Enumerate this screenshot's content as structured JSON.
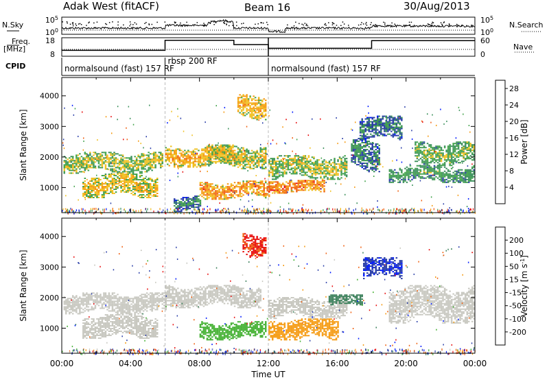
{
  "header": {
    "station": "Adak West (fitACF)",
    "beam": "Beam 16",
    "date": "30/Aug/2013"
  },
  "side_labels": {
    "nsky": "N.Sky",
    "freq_line1": "Freq.",
    "freq_line2": "[MHz]",
    "cpid": "CPID",
    "nsearch": "N.Search",
    "nave": "Nave"
  },
  "chart_data": [
    {
      "type": "line",
      "panel": "noise",
      "series": [
        {
          "name": "N.Sky"
        },
        {
          "name": "N.Search"
        }
      ],
      "y_ticks": [
        "10^0",
        "10^5"
      ],
      "y2_ticks": [
        "10^0",
        "10^5"
      ]
    },
    {
      "type": "line",
      "panel": "frequency",
      "series": [
        {
          "name": "Freq.",
          "unit": "MHz"
        },
        {
          "name": "Nave"
        }
      ],
      "y_ticks": [
        "8",
        "18"
      ],
      "y2_ticks": [
        "0",
        "60"
      ],
      "freq_steps": [
        {
          "x0": 0.0,
          "x1": 6.0,
          "freq": 11.2
        },
        {
          "x0": 6.0,
          "x1": 10.0,
          "freq": 16.6
        },
        {
          "x0": 10.0,
          "x1": 12.0,
          "freq": 14.3
        },
        {
          "x0": 12.0,
          "x1": 18.0,
          "freq": 12.3
        },
        {
          "x0": 18.0,
          "x1": 24.0,
          "freq": 16.4
        }
      ]
    },
    {
      "type": "table",
      "panel": "cpid",
      "segments": [
        {
          "label": "normalsound (fast) 157 RF",
          "start": 0.0
        },
        {
          "label": "rbsp 200 RF",
          "start": 6.0
        },
        {
          "label": "normalsound (fast) 157 RF",
          "start": 12.0
        }
      ]
    },
    {
      "type": "heatmap",
      "panel": "power",
      "ylabel": "Slant Range [km]",
      "y_ticks": [
        1000,
        2000,
        3000,
        4000
      ],
      "ylim": [
        180,
        4600
      ],
      "colorbar_label": "Power [dB]",
      "colorbar_ticks": [
        4,
        8,
        12,
        16,
        20,
        24,
        28
      ],
      "colorbar_range": [
        0,
        30
      ],
      "bands": [
        {
          "x0": 0.1,
          "x1": 5.8,
          "r0": 1450,
          "r1": 2150,
          "value": 16
        },
        {
          "x0": 1.2,
          "x1": 5.5,
          "r0": 650,
          "r1": 1450,
          "value": 18
        },
        {
          "x0": 6.0,
          "x1": 10.0,
          "r0": 1650,
          "r1": 2350,
          "value": 20
        },
        {
          "x0": 6.5,
          "x1": 8.0,
          "r0": 200,
          "r1": 700,
          "value": 10
        },
        {
          "x0": 8.5,
          "x1": 11.8,
          "r0": 1600,
          "r1": 2400,
          "value": 17
        },
        {
          "x0": 8.0,
          "x1": 12.0,
          "r0": 600,
          "r1": 1200,
          "value": 22
        },
        {
          "x0": 12.0,
          "x1": 15.2,
          "r0": 800,
          "r1": 1250,
          "value": 24
        },
        {
          "x0": 12.0,
          "x1": 16.5,
          "r0": 1250,
          "r1": 2050,
          "value": 16
        },
        {
          "x0": 16.8,
          "x1": 18.5,
          "r0": 1500,
          "r1": 2600,
          "value": 10
        },
        {
          "x0": 17.3,
          "x1": 19.8,
          "r0": 2500,
          "r1": 3350,
          "value": 9
        },
        {
          "x0": 19.0,
          "x1": 24.0,
          "r0": 1150,
          "r1": 1700,
          "value": 12
        },
        {
          "x0": 20.5,
          "x1": 24.0,
          "r0": 1700,
          "r1": 2500,
          "value": 14
        },
        {
          "x0": 10.2,
          "x1": 11.8,
          "r0": 3200,
          "r1": 4050,
          "value": 20
        }
      ]
    },
    {
      "type": "heatmap",
      "panel": "velocity",
      "ylabel": "Slant Range [km]",
      "y_ticks": [
        1000,
        2000,
        3000,
        4000
      ],
      "ylim": [
        180,
        4600
      ],
      "colorbar_label": "Velocity [m s^-1]",
      "colorbar_ticks": [
        -200,
        -100,
        -50,
        -15,
        15,
        50,
        100,
        200
      ],
      "colorbar_range": [
        -250,
        250
      ],
      "bands": [
        {
          "x0": 0.1,
          "x1": 6.0,
          "r0": 1450,
          "r1": 2150,
          "value": 0
        },
        {
          "x0": 1.2,
          "x1": 5.5,
          "r0": 650,
          "r1": 1450,
          "value": 0
        },
        {
          "x0": 6.0,
          "x1": 11.5,
          "r0": 1650,
          "r1": 2400,
          "value": 0
        },
        {
          "x0": 8.0,
          "x1": 11.8,
          "r0": 600,
          "r1": 1200,
          "value": 40
        },
        {
          "x0": 12.0,
          "x1": 16.0,
          "r0": 600,
          "r1": 1300,
          "value": -60
        },
        {
          "x0": 12.0,
          "x1": 16.5,
          "r0": 1300,
          "r1": 2000,
          "value": -40
        },
        {
          "x0": 15.5,
          "x1": 17.5,
          "r0": 1700,
          "r1": 2100,
          "value": 80
        },
        {
          "x0": 17.5,
          "x1": 19.8,
          "r0": 2600,
          "r1": 3300,
          "value": 200
        },
        {
          "x0": 10.5,
          "x1": 11.8,
          "r0": 3300,
          "r1": 4100,
          "value": -200
        },
        {
          "x0": 19.0,
          "x1": 24.0,
          "r0": 1150,
          "r1": 2400,
          "value": 0
        }
      ]
    }
  ],
  "x_axis": {
    "label": "Time UT",
    "ticks": [
      "00:00",
      "04:00",
      "08:00",
      "12:00",
      "16:00",
      "20:00",
      "00:00"
    ],
    "xlim": [
      0,
      24
    ]
  },
  "colors": {
    "power_scale": [
      "#0019ff",
      "#2a3ea8",
      "#3a8f5a",
      "#42a24b",
      "#f0c020",
      "#f59a10",
      "#f06010",
      "#e81010"
    ],
    "velocity_scale": [
      "#e81010",
      "#f06010",
      "#f59a10",
      "#c8c8c0",
      "#c8c8c0",
      "#42b030",
      "#3a7f5a",
      "#2a3ea8",
      "#0019ff"
    ]
  }
}
